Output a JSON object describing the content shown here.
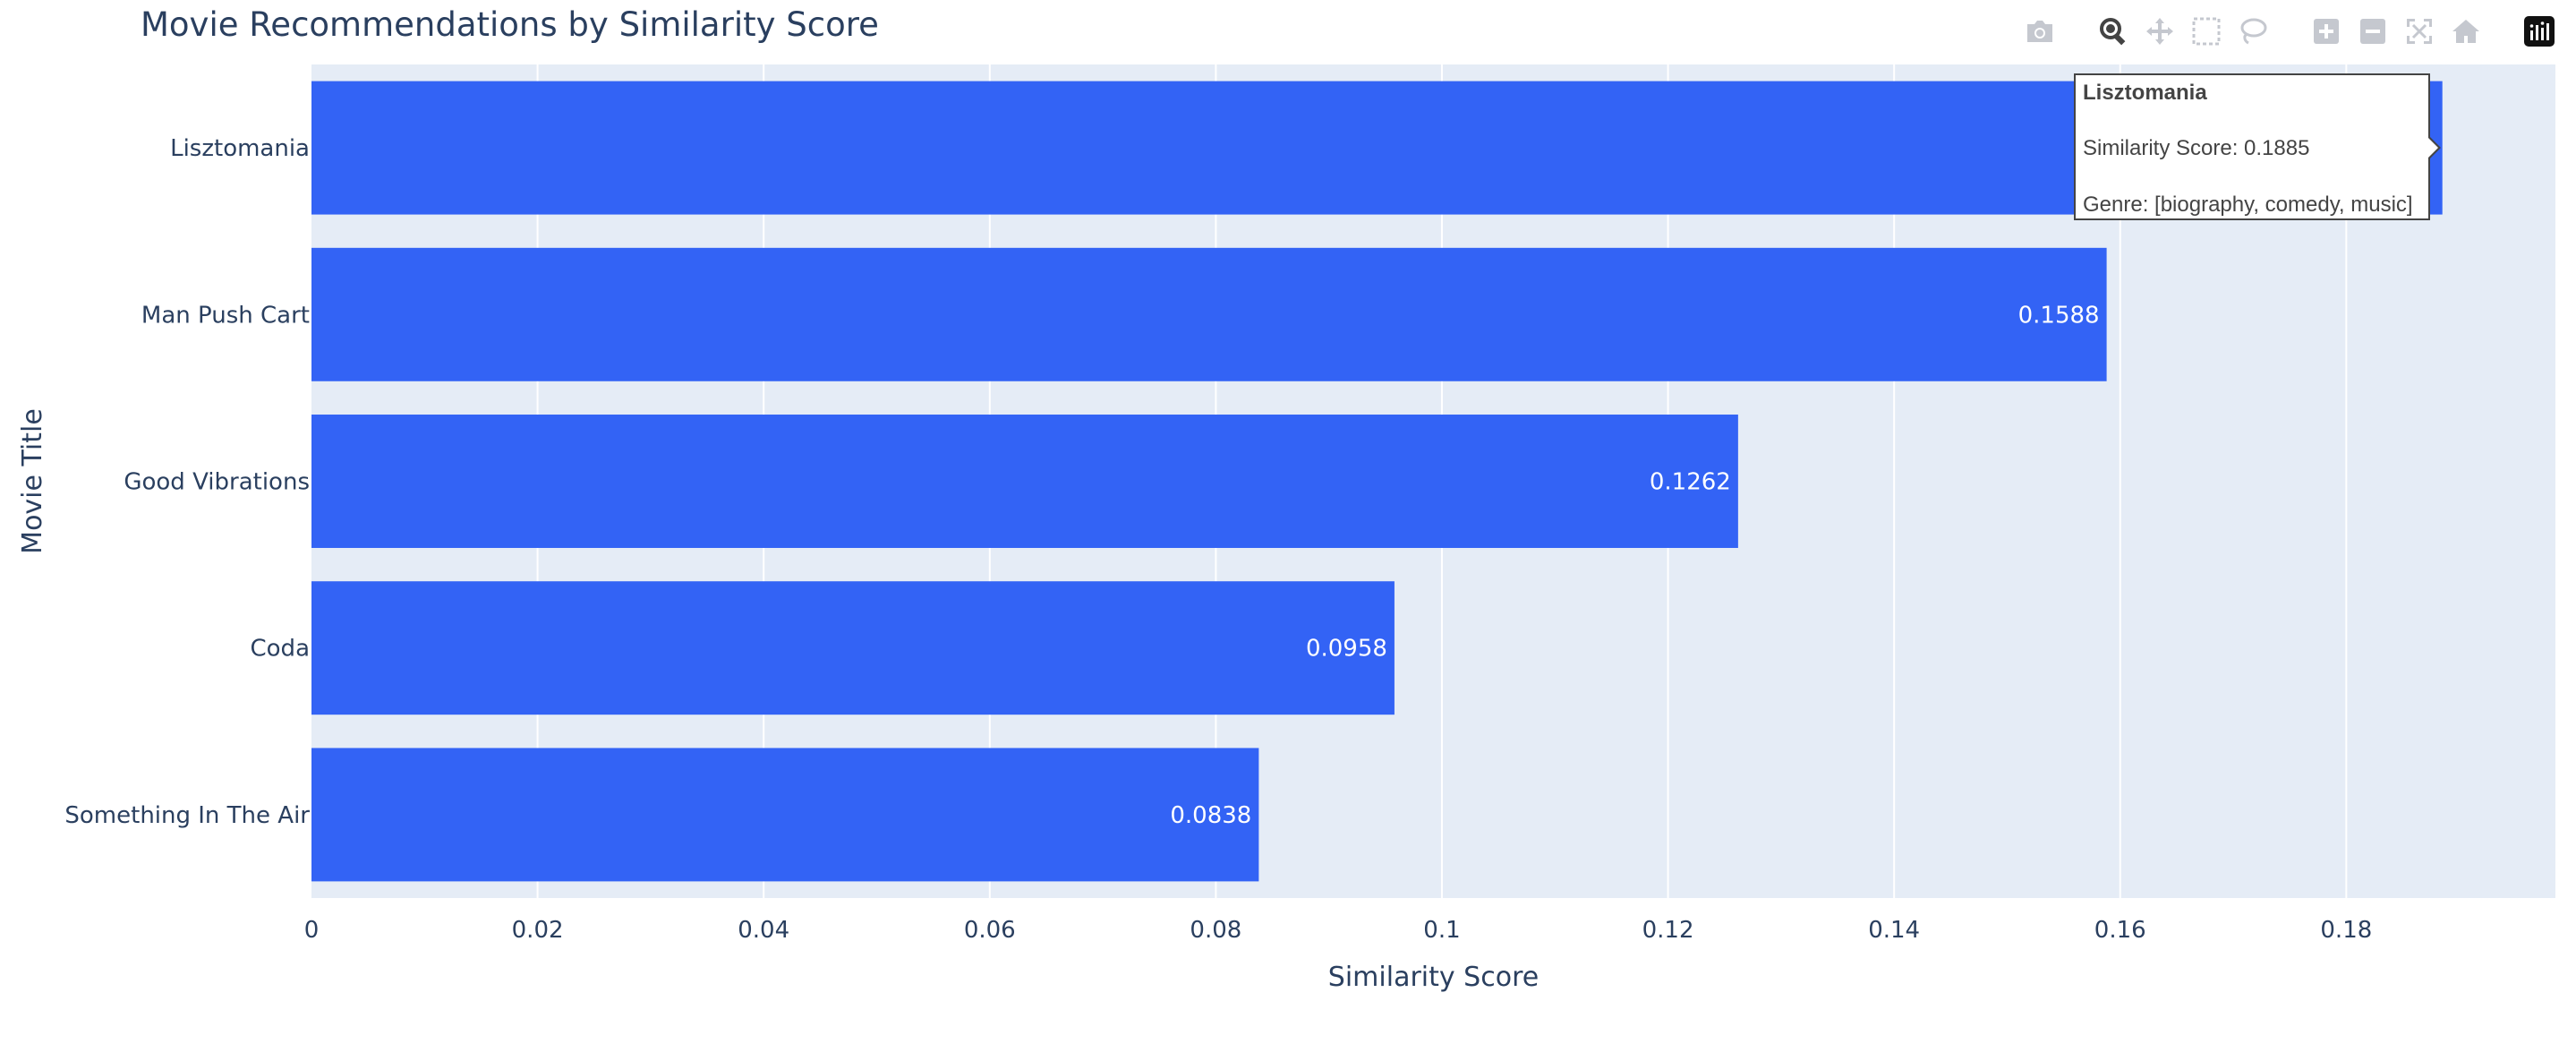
{
  "chart_data": {
    "type": "bar",
    "orientation": "horizontal",
    "title": "Movie Recommendations by Similarity Score",
    "xlabel": "Similarity Score",
    "ylabel": "Movie Title",
    "categories": [
      "Lisztomania",
      "Man Push Cart",
      "Good Vibrations",
      "Coda",
      "Something In The Air"
    ],
    "values": [
      0.1885,
      0.1588,
      0.1262,
      0.0958,
      0.0838
    ],
    "data_labels": [
      "",
      "0.1588",
      "0.1262",
      "0.0958",
      "0.0838"
    ],
    "xlim": [
      0,
      0.1985
    ],
    "xticks": [
      0,
      0.02,
      0.04,
      0.06,
      0.08,
      0.1,
      0.12,
      0.14,
      0.16,
      0.18
    ],
    "xtick_labels": [
      "0",
      "0.02",
      "0.04",
      "0.06",
      "0.08",
      "0.1",
      "0.12",
      "0.14",
      "0.16",
      "0.18"
    ],
    "grid": true,
    "colors": {
      "bar": "#3363f5",
      "plot_bg": "#e5ecf6",
      "grid": "#ffffff",
      "text": "#2a3f5f"
    }
  },
  "tooltip": {
    "title": "Lisztomania",
    "score_line": "Similarity Score: 0.1885",
    "genre_line": "Genre: [biography,  comedy,  music]"
  },
  "modebar": {
    "icons": [
      "camera-icon",
      "zoom-icon",
      "pan-icon",
      "box-select-icon",
      "lasso-icon",
      "zoom-in-icon",
      "zoom-out-icon",
      "autoscale-icon",
      "reset-axes-icon",
      "plotly-logo-icon"
    ]
  }
}
